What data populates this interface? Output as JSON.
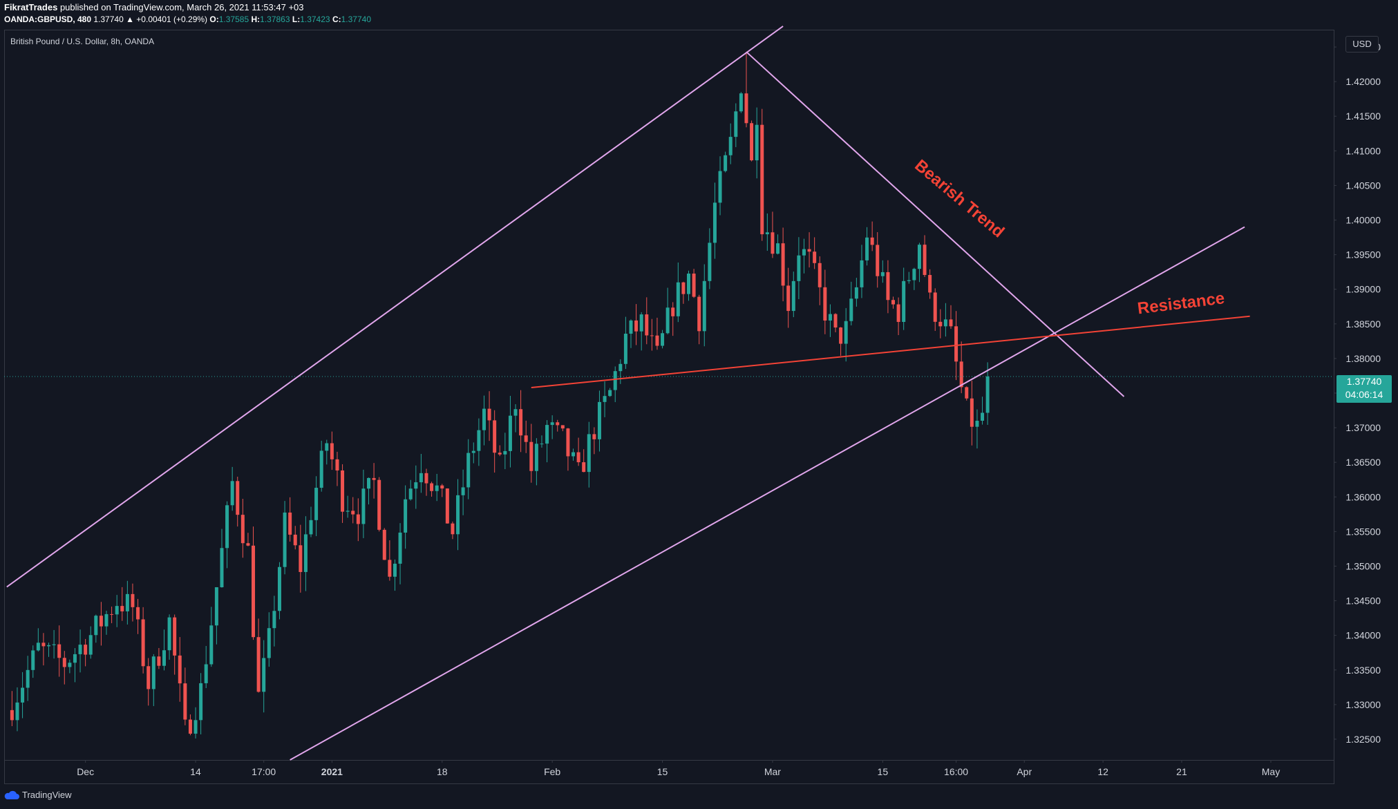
{
  "header": {
    "author": "FikratTrades",
    "published_text": "published on TradingView.com, March 26, 2021 11:53:47 +03",
    "symbol": "OANDA:GBPUSD, 480",
    "change": "1.37740 ▲ +0.00401 (+0.29%)",
    "o_label": "O:",
    "o_value": "1.37585",
    "h_label": "H:",
    "h_value": "1.37863",
    "l_label": "L:",
    "l_value": "1.37423",
    "c_label": "C:",
    "c_value": "1.37740"
  },
  "footer": {
    "brand": "TradingView"
  },
  "price_scale": {
    "currency": "USD"
  },
  "price_tag": {
    "price": "1.37740",
    "countdown": "04:06:14"
  },
  "colors": {
    "background": "#131722",
    "up": "#26a69a",
    "down": "#ef5350",
    "trendline_purple": "#e1a6ec",
    "resistance": "#f44336",
    "annotation_text": "#f44336"
  },
  "chart_data": {
    "type": "candlestick",
    "title": "British Pound / U.S. Dollar, 8h, OANDA",
    "ylim": [
      1.322,
      1.4275
    ],
    "y_ticks": [
      "1.42500",
      "1.42000",
      "1.41500",
      "1.41000",
      "1.40500",
      "1.40000",
      "1.39500",
      "1.39000",
      "1.38500",
      "1.38000",
      "1.37500",
      "1.37000",
      "1.36500",
      "1.36000",
      "1.35500",
      "1.35000",
      "1.34500",
      "1.34000",
      "1.33500",
      "1.33000",
      "1.32500"
    ],
    "y_tick_values": [
      1.425,
      1.42,
      1.415,
      1.41,
      1.405,
      1.4,
      1.395,
      1.39,
      1.385,
      1.38,
      1.375,
      1.37,
      1.365,
      1.36,
      1.355,
      1.35,
      1.345,
      1.34,
      1.335,
      1.33,
      1.325
    ],
    "x_ticks": [
      {
        "label": "Dec",
        "i": 14,
        "bold": false
      },
      {
        "label": "14",
        "i": 35,
        "bold": false
      },
      {
        "label": "17:00",
        "i": 48,
        "bold": false
      },
      {
        "label": "2021",
        "i": 61,
        "bold": true
      },
      {
        "label": "18",
        "i": 82,
        "bold": false
      },
      {
        "label": "Feb",
        "i": 103,
        "bold": false
      },
      {
        "label": "15",
        "i": 124,
        "bold": false
      },
      {
        "label": "Mar",
        "i": 145,
        "bold": false
      },
      {
        "label": "15",
        "i": 166,
        "bold": false
      },
      {
        "label": "16:00",
        "i": 180,
        "bold": false
      },
      {
        "label": "Apr",
        "i": 193,
        "bold": false
      },
      {
        "label": "12",
        "i": 208,
        "bold": false
      },
      {
        "label": "21",
        "i": 223,
        "bold": false
      },
      {
        "label": "May",
        "i": 240,
        "bold": false
      }
    ],
    "last_price": 1.3774,
    "close_path": [
      [
        0,
        1.33
      ],
      [
        5,
        1.338
      ],
      [
        10,
        1.336
      ],
      [
        15,
        1.34
      ],
      [
        20,
        1.345
      ],
      [
        23,
        1.344
      ],
      [
        26,
        1.333
      ],
      [
        30,
        1.342
      ],
      [
        33,
        1.326
      ],
      [
        36,
        1.332
      ],
      [
        39,
        1.347
      ],
      [
        42,
        1.362
      ],
      [
        45,
        1.352
      ],
      [
        47,
        1.331
      ],
      [
        49,
        1.339
      ],
      [
        52,
        1.356
      ],
      [
        55,
        1.35
      ],
      [
        57,
        1.358
      ],
      [
        60,
        1.368
      ],
      [
        63,
        1.36
      ],
      [
        66,
        1.358
      ],
      [
        69,
        1.362
      ],
      [
        72,
        1.348
      ],
      [
        75,
        1.36
      ],
      [
        78,
        1.365
      ],
      [
        81,
        1.361
      ],
      [
        84,
        1.355
      ],
      [
        87,
        1.365
      ],
      [
        90,
        1.372
      ],
      [
        93,
        1.364
      ],
      [
        96,
        1.374
      ],
      [
        99,
        1.364
      ],
      [
        102,
        1.37
      ],
      [
        105,
        1.368
      ],
      [
        108,
        1.363
      ],
      [
        111,
        1.37
      ],
      [
        114,
        1.375
      ],
      [
        117,
        1.383
      ],
      [
        120,
        1.385
      ],
      [
        123,
        1.38
      ],
      [
        126,
        1.388
      ],
      [
        129,
        1.392
      ],
      [
        131,
        1.386
      ],
      [
        134,
        1.402
      ],
      [
        137,
        1.411
      ],
      [
        139,
        1.42
      ],
      [
        141,
        1.408
      ],
      [
        142,
        1.416
      ],
      [
        143,
        1.4
      ],
      [
        146,
        1.396
      ],
      [
        148,
        1.388
      ],
      [
        150,
        1.396
      ],
      [
        152,
        1.394
      ],
      [
        155,
        1.387
      ],
      [
        157,
        1.383
      ],
      [
        159,
        1.384
      ],
      [
        161,
        1.39
      ],
      [
        163,
        1.398
      ],
      [
        165,
        1.393
      ],
      [
        167,
        1.388
      ],
      [
        169,
        1.387
      ],
      [
        171,
        1.392
      ],
      [
        173,
        1.397
      ],
      [
        175,
        1.388
      ],
      [
        177,
        1.386
      ],
      [
        179,
        1.383
      ],
      [
        180,
        1.379
      ],
      [
        182,
        1.372
      ],
      [
        184,
        1.37
      ],
      [
        186,
        1.374
      ]
    ],
    "price_high": 1.4243,
    "price_high_index": 140,
    "low_touch": {
      "i": 184,
      "price": 1.367
    },
    "trendlines": [
      {
        "name": "upper-channel",
        "color": "#e1a6ec",
        "from": {
          "i": -1,
          "price": 1.347
        },
        "to": {
          "i": 147,
          "price": 1.428
        }
      },
      {
        "name": "lower-channel",
        "color": "#e1a6ec",
        "from": {
          "i": 53,
          "price": 1.322
        },
        "to": {
          "i": 235,
          "price": 1.399
        }
      },
      {
        "name": "bearish-trend",
        "color": "#e1a6ec",
        "from": {
          "i": 140,
          "price": 1.4243
        },
        "to": {
          "i": 212,
          "price": 1.3745
        }
      },
      {
        "name": "resistance",
        "color": "#f44336",
        "from": {
          "i": 99,
          "price": 1.3758
        },
        "to": {
          "i": 236,
          "price": 1.3861
        }
      }
    ],
    "annotations": [
      {
        "text": "Bearish Trend",
        "i": 180,
        "price": 1.4025,
        "rotation": 40
      },
      {
        "text": "Resistance",
        "i": 223,
        "price": 1.3872,
        "rotation": -7
      }
    ]
  }
}
